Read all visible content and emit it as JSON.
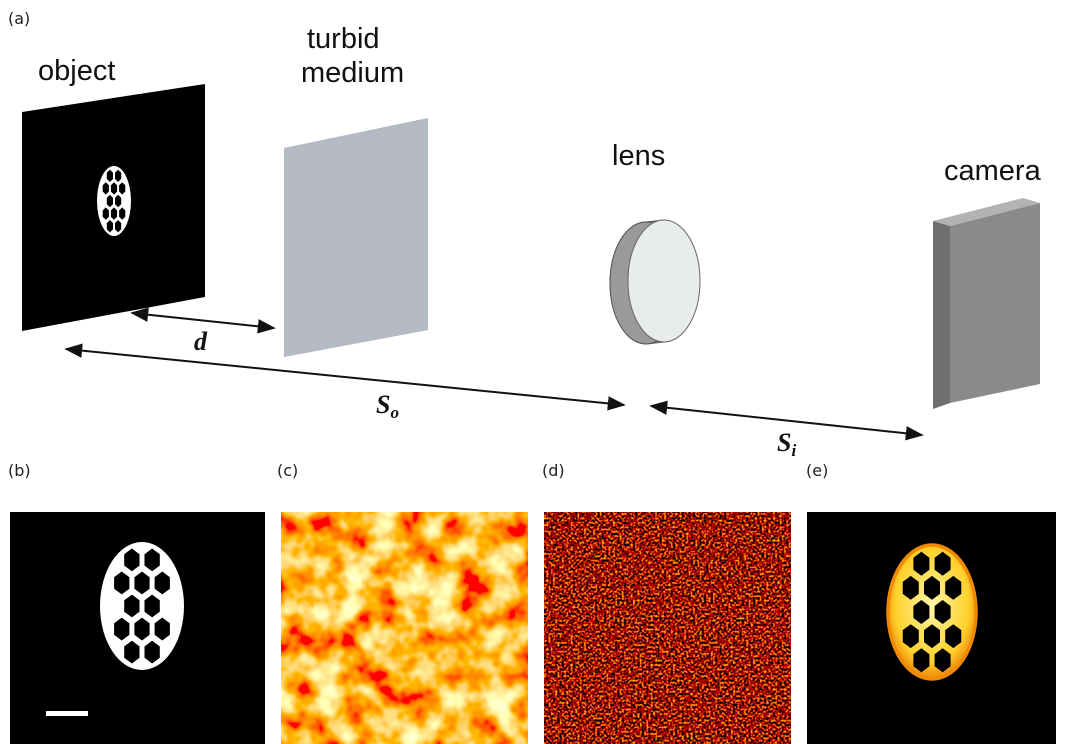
{
  "panel_labels": {
    "a": "(a)",
    "b": "(b)",
    "c": "(c)",
    "d": "(d)",
    "e": "(e)"
  },
  "labels": {
    "object": "object",
    "turbid_medium": [
      "turbid",
      "medium"
    ],
    "lens": "lens",
    "camera": "camera",
    "d": "d",
    "s_o": {
      "main": "S",
      "sub": "o"
    },
    "s_i": {
      "main": "S",
      "sub": "i"
    }
  }
}
